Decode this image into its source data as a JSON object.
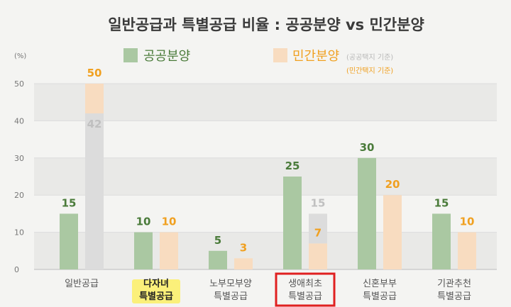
{
  "chart_data": {
    "type": "bar",
    "title": "일반공급과 특별공급 비율 : 공공분양 vs 민간분양",
    "y_unit": "(%)",
    "ylim": [
      0,
      50
    ],
    "yticks": [
      0,
      10,
      20,
      30,
      40,
      50
    ],
    "grid": true,
    "legend_position": "top",
    "categories": [
      [
        "일반공급"
      ],
      [
        "다자녀",
        "특별공급"
      ],
      [
        "노부모부양",
        "특별공급"
      ],
      [
        "생애최초",
        "특별공급"
      ],
      [
        "신혼부부",
        "특별공급"
      ],
      [
        "기관추천",
        "특별공급"
      ]
    ],
    "series": [
      {
        "name": "공공분양",
        "values": [
          15,
          10,
          5,
          25,
          30,
          15
        ],
        "color": "#aac8a2",
        "label_color": "#4a7b3a"
      },
      {
        "name": "민간분양",
        "note": "(공공택지 기준)",
        "values": [
          50,
          10,
          3,
          7,
          20,
          10
        ],
        "color": "#f8dcc0",
        "label_color": "#f0a020"
      },
      {
        "name": "민간분양",
        "note": "(민간택지 기준)",
        "values": [
          42,
          null,
          null,
          15,
          null,
          null
        ],
        "color": "#dcdcdc",
        "label_color": "#c0c0c0"
      }
    ],
    "highlight_yellow_index": 1,
    "highlight_box_index": 3,
    "colors": {
      "highlight_yellow": "#fbf07a",
      "highlight_box": "#e02020"
    }
  }
}
